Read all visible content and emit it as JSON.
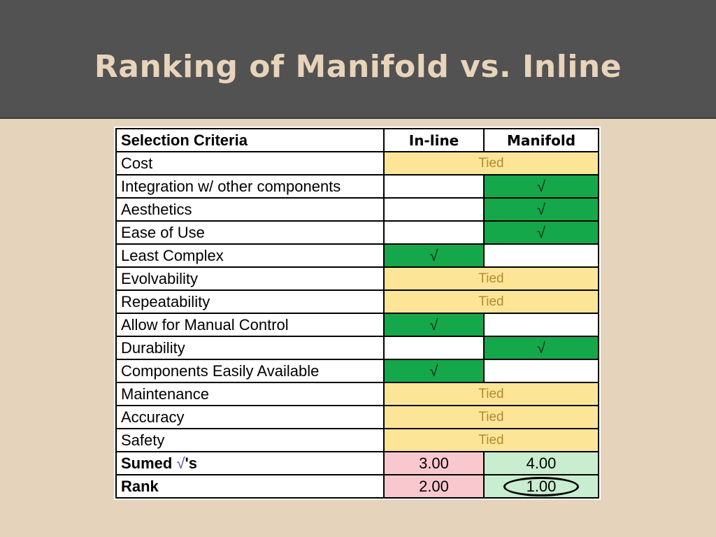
{
  "slide": {
    "title": "Ranking of Manifold vs. Inline"
  },
  "table": {
    "header": {
      "criteria": "Selection Criteria",
      "inline": "In-line",
      "manifold": "Manifold"
    },
    "check_mark": "√",
    "tied_label": "Tied",
    "rows": [
      {
        "label": "Cost",
        "result": "tied"
      },
      {
        "label": "Integration w/ other components",
        "result": "manifold"
      },
      {
        "label": "Aesthetics",
        "result": "manifold"
      },
      {
        "label": "Ease of Use",
        "result": "manifold"
      },
      {
        "label": "Least Complex",
        "result": "inline"
      },
      {
        "label": "Evolvability",
        "result": "tied"
      },
      {
        "label": "Repeatability",
        "result": "tied"
      },
      {
        "label": "Allow for Manual Control",
        "result": "inline"
      },
      {
        "label": "Durability",
        "result": "manifold"
      },
      {
        "label": "Components Easily Available",
        "result": "inline"
      },
      {
        "label": "Maintenance",
        "result": "tied"
      },
      {
        "label": "Accuracy",
        "result": "tied"
      },
      {
        "label": "Safety",
        "result": "tied"
      }
    ],
    "summed": {
      "label_prefix": "Sumed ",
      "label_sqrt": "√",
      "label_suffix": "'s",
      "inline": "3.00",
      "manifold": "4.00"
    },
    "rank": {
      "label": "Rank",
      "inline": "2.00",
      "manifold": "1.00"
    }
  },
  "colors": {
    "header_bg": "#525252",
    "title_color": "#e7d4ba",
    "page_bg": "#e5d4bb",
    "tied_bg": "#fde598",
    "check_bg": "#14a84a",
    "inline_total_bg": "#f9c8cf",
    "manifold_total_bg": "#c8edcf"
  }
}
